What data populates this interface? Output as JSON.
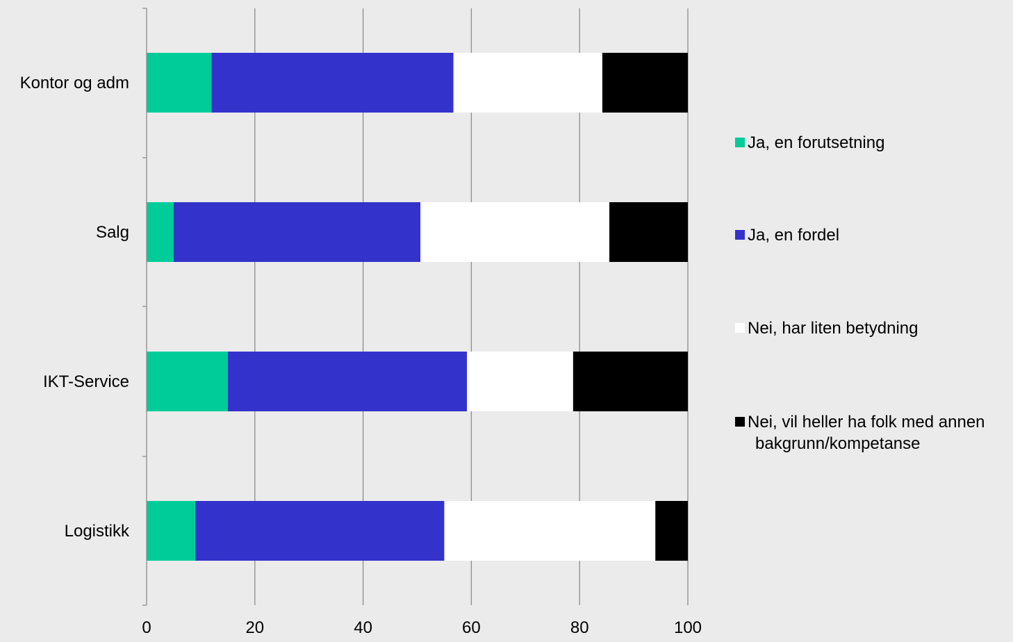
{
  "chart_data": {
    "type": "bar",
    "orientation": "horizontal",
    "stacked": true,
    "title": "",
    "xlabel": "",
    "ylabel": "",
    "categories": [
      "Kontor og adm",
      "Salg",
      "IKT-Service",
      "Logistikk"
    ],
    "series": [
      {
        "name": "Ja, en forutsetning",
        "color": "#00cc99",
        "values": [
          12,
          5,
          15,
          9
        ]
      },
      {
        "name": "Ja, en fordel",
        "color": "#3333cc",
        "values": [
          44.7,
          45.6,
          44.2,
          46
        ]
      },
      {
        "name": "Nei, har liten betydning",
        "color": "#ffffff",
        "values": [
          27.5,
          34.9,
          19.6,
          39
        ]
      },
      {
        "name": "Nei, vil heller ha folk med annen bakgrunn/kompetanse",
        "legend_lines": [
          "Nei, vil heller ha folk med annen",
          "bakgrunn/kompetanse"
        ],
        "color": "#000000",
        "values": [
          15.8,
          14.5,
          21.2,
          6
        ]
      }
    ],
    "xlim": [
      0,
      100
    ],
    "xticks": [
      0,
      20,
      40,
      60,
      80,
      100
    ],
    "grid": true,
    "legend_position": "right"
  },
  "colors": {
    "background": "#ebebeb",
    "gridline": "#8c8c8c",
    "axis": "#8c8c8c"
  }
}
